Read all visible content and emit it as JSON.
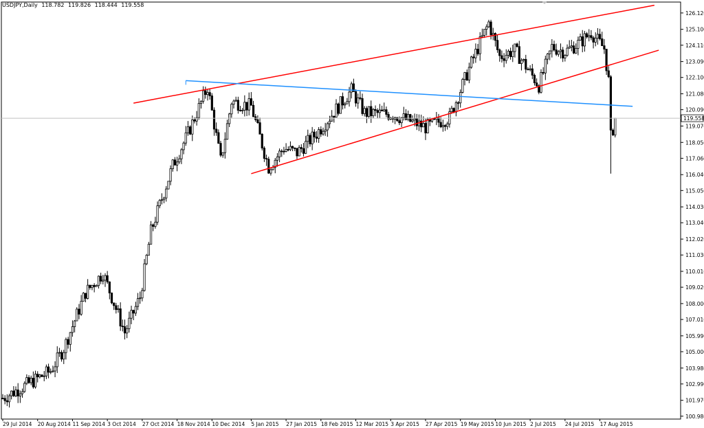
{
  "header": {
    "symbol": "USDJPY,Daily",
    "open": "118.782",
    "high": "119.826",
    "low": "118.444",
    "close": "119.558"
  },
  "chart_data": {
    "type": "candlestick",
    "title": "USDJPY,Daily",
    "ylim": [
      100.8,
      126.8
    ],
    "y_ticks": [
      100.98,
      101.97,
      102.99,
      103.98,
      105.0,
      105.99,
      107.01,
      108.0,
      109.02,
      110.01,
      111.03,
      112.02,
      113.04,
      114.03,
      115.05,
      116.04,
      117.06,
      118.05,
      119.07,
      120.09,
      121.08,
      122.1,
      123.09,
      124.11,
      125.1,
      126.12
    ],
    "x_tick_labels": [
      "29 Jul 2014",
      "20 Aug 2014",
      "11 Sep 2014",
      "3 Oct 2014",
      "27 Oct 2014",
      "18 Nov 2014",
      "10 Dec 2014",
      "5 Jan 2015",
      "27 Jan 2015",
      "18 Feb 2015",
      "12 Mar 2015",
      "3 Apr 2015",
      "27 Apr 2015",
      "19 May 2015",
      "10 Jun 2015",
      "2 Jul 2015",
      "24 Jul 2015",
      "17 Aug 2015"
    ],
    "x_range": [
      "29 Jul 2014",
      "27 Aug 2015"
    ],
    "current_price": 119.558,
    "current_price_label": "119.558",
    "series": [
      {
        "values": [
          [
            "29 Jul 2014",
            102.1
          ],
          [
            "28 Aug 2014",
            103.8
          ],
          [
            "5 Sep 2014",
            105.2
          ],
          [
            "19 Sep 2014",
            108.7
          ],
          [
            "1 Oct 2014",
            109.9
          ],
          [
            "15 Oct 2014",
            106.2
          ],
          [
            "24 Oct 2014",
            108.4
          ],
          [
            "31 Oct 2014",
            112.5
          ],
          [
            "14 Nov 2014",
            116.6
          ],
          [
            "24 Nov 2014",
            118.3
          ],
          [
            "8 Dec 2014",
            121.5
          ],
          [
            "16 Dec 2014",
            116.9
          ],
          [
            "23 Dec 2014",
            120.6
          ],
          [
            "5 Jan 2015",
            120.3
          ],
          [
            "15 Jan 2015",
            116.5
          ],
          [
            "26 Jan 2015",
            117.7
          ],
          [
            "3 Feb 2015",
            117.4
          ],
          [
            "16 Feb 2015",
            118.6
          ],
          [
            "10 Mar 2015",
            121.3
          ],
          [
            "18 Mar 2015",
            119.9
          ],
          [
            "6 Apr 2015",
            119.8
          ],
          [
            "27 Apr 2015",
            119.0
          ],
          [
            "12 May 2015",
            119.6
          ],
          [
            "26 May 2015",
            123.0
          ],
          [
            "5 Jun 2015",
            125.5
          ],
          [
            "12 Jun 2015",
            123.4
          ],
          [
            "23 Jun 2015",
            123.8
          ],
          [
            "8 Jul 2015",
            121.6
          ],
          [
            "16 Jul 2015",
            124.0
          ],
          [
            "24 Jul 2015",
            123.7
          ],
          [
            "4 Aug 2015",
            124.3
          ],
          [
            "11 Aug 2015",
            124.9
          ],
          [
            "19 Aug 2015",
            123.9
          ],
          [
            "21 Aug 2015",
            121.9
          ],
          [
            "24 Aug 2015",
            118.4
          ],
          [
            "25 Aug 2015",
            118.9
          ],
          [
            "26 Aug 2015",
            119.6
          ]
        ]
      }
    ],
    "trendlines": [
      {
        "color": "#ff0000",
        "from": [
          "21 Oct 2014",
          120.5
        ],
        "to": [
          "20 Sep 2015",
          126.6
        ]
      },
      {
        "color": "#ff0000",
        "from": [
          "5 Jan 2015",
          116.1
        ],
        "to": [
          "23 Sep 2015",
          123.8
        ]
      },
      {
        "color": "#1e90ff",
        "from": [
          "24 Nov 2014",
          121.9
        ],
        "to": [
          "7 Sep 2015",
          120.3
        ]
      }
    ],
    "colors": {
      "candle": "#000000",
      "price_line": "#c0c0c0",
      "channel": "#ff0000",
      "neckline": "#1e90ff",
      "price_label_bg": "#ffffff"
    }
  }
}
